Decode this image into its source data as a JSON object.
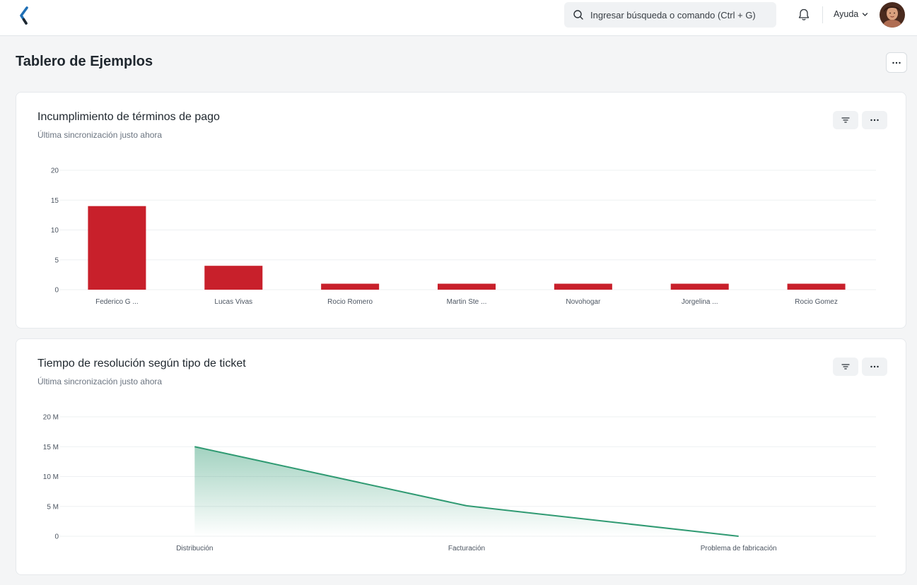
{
  "header": {
    "search_placeholder": "Ingresar búsqueda o comando (Ctrl + G)",
    "help_label": "Ayuda"
  },
  "page": {
    "title": "Tablero de Ejemplos"
  },
  "colors": {
    "bar": "#c8202b",
    "line": "#2f9a72",
    "brand": "#1f6fb5"
  },
  "cards": [
    {
      "title": "Incumplimiento de términos de pago",
      "subtitle": "Última sincronización justo ahora"
    },
    {
      "title": "Tiempo de resolución según tipo de ticket",
      "subtitle": "Última sincronización justo ahora"
    }
  ],
  "chart_data": [
    {
      "type": "bar",
      "categories": [
        "Federico G ...",
        "Lucas Vivas",
        "Rocio Romero",
        "Martin Ste ...",
        "Novohogar",
        "Jorgelina ...",
        "Rocio Gomez"
      ],
      "values": [
        14,
        4,
        1,
        1,
        1,
        1,
        1
      ],
      "y_ticks": [
        "0",
        "5",
        "10",
        "15",
        "20"
      ],
      "ylim": [
        0,
        20
      ],
      "grid": true
    },
    {
      "type": "area",
      "categories": [
        "Distribución",
        "Facturación",
        "Problema de fabricación"
      ],
      "values": [
        15000000,
        5100000,
        0
      ],
      "y_ticks": [
        "0",
        "5 M",
        "10 M",
        "15 M",
        "20 M"
      ],
      "ylim": [
        0,
        20000000
      ],
      "grid": true
    }
  ]
}
